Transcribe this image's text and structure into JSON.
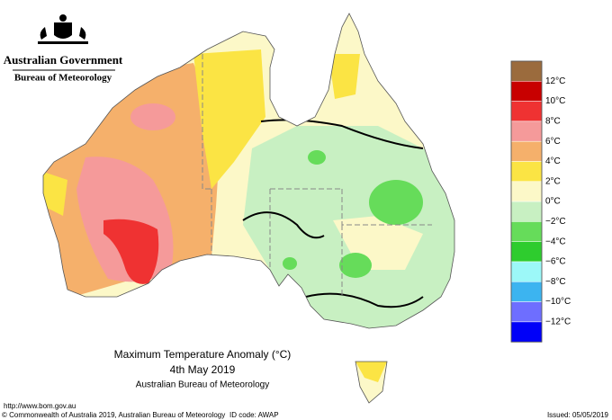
{
  "header": {
    "title": "Australian Government",
    "subtitle": "Bureau of Meteorology"
  },
  "legend": {
    "labels": [
      "12°C",
      "10°C",
      "8°C",
      "6°C",
      "4°C",
      "2°C",
      "0°C",
      "−2°C",
      "−4°C",
      "−6°C",
      "−8°C",
      "−10°C",
      "−12°C"
    ],
    "colors": [
      "#9b6b3d",
      "#c80000",
      "#ef3232",
      "#f59a9a",
      "#f5b06b",
      "#fbe444",
      "#fcf8c8",
      "#c8f0c2",
      "#66dc5a",
      "#2ecc2e",
      "#9cf8f8",
      "#3cb4f0",
      "#6e6eff",
      "#0000f8"
    ]
  },
  "caption": {
    "title": "Maximum Temperature Anomaly (°C)",
    "date": "4th May 2019",
    "source": "Australian Bureau of Meteorology"
  },
  "footer": {
    "url": "http://www.bom.gov.au",
    "copyright": "© Commonwealth of Australia 2019, Australian Bureau of Meteorology",
    "id_code": "ID code: AWAP",
    "issued": "Issued: 05/05/2019"
  }
}
